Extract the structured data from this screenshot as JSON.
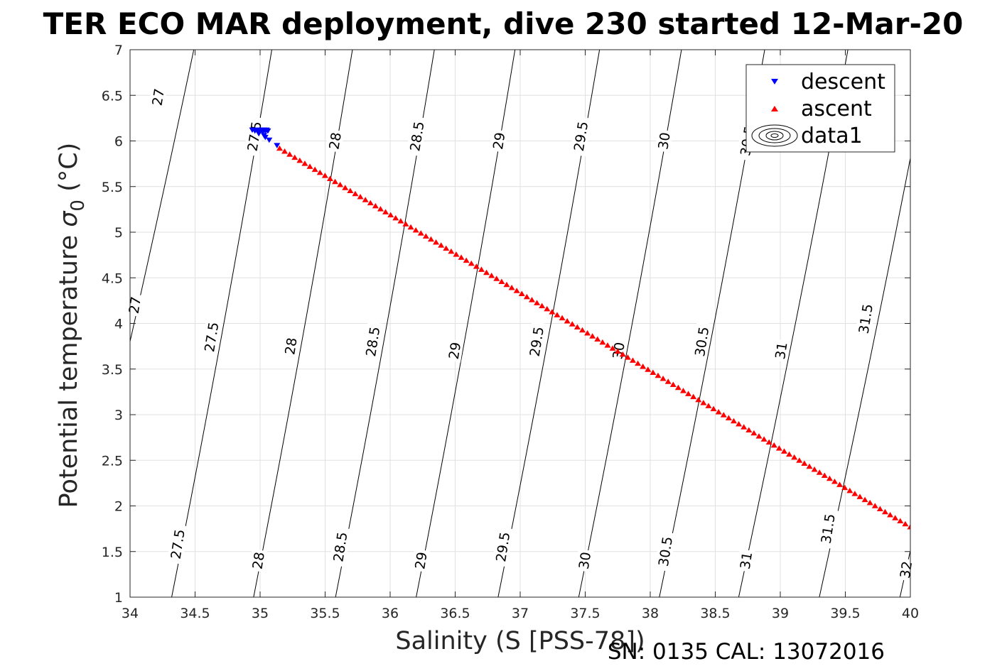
{
  "figure": {
    "title": "TER ECO MAR deployment, dive 230 started 12-Mar-20",
    "footer": "SN: 0135  CAL: 13072016"
  },
  "chart_data": {
    "type": "scatter",
    "title": "TER ECO MAR deployment, dive 230 started 12-Mar-20",
    "xlabel": "Salinity (S [PSS-78])",
    "ylabel_prefix": "Potential temperature ",
    "ylabel_sigma": "σ",
    "ylabel_sub": "0",
    "ylabel_suffix": " (°C)",
    "xlim": [
      34,
      40
    ],
    "ylim": [
      1,
      7
    ],
    "xticks": [
      34,
      34.5,
      35,
      35.5,
      36,
      36.5,
      37,
      37.5,
      38,
      38.5,
      39,
      39.5,
      40
    ],
    "xtick_labels": [
      "34",
      "34.5",
      "35",
      "35.5",
      "36",
      "36.5",
      "37",
      "37.5",
      "38",
      "38.5",
      "39",
      "39.5",
      "40"
    ],
    "yticks": [
      1,
      1.5,
      2,
      2.5,
      3,
      3.5,
      4,
      4.5,
      5,
      5.5,
      6,
      6.5,
      7
    ],
    "ytick_labels": [
      "1",
      "1.5",
      "2",
      "2.5",
      "3",
      "3.5",
      "4",
      "4.5",
      "5",
      "5.5",
      "6",
      "6.5",
      "7"
    ],
    "grid": true,
    "legend_position": "top-right",
    "series": [
      {
        "name": "descent",
        "marker": "triangle-down",
        "color": "#0000ff",
        "x": [
          34.94,
          34.96,
          34.98,
          35.0,
          35.01,
          35.02,
          35.03,
          35.04,
          35.05,
          35.06,
          34.99,
          35.03,
          35.04,
          35.07,
          35.13
        ],
        "y": [
          6.12,
          6.11,
          6.12,
          6.11,
          6.12,
          6.1,
          6.12,
          6.11,
          6.12,
          6.11,
          6.08,
          6.06,
          6.04,
          6.01,
          5.95
        ]
      },
      {
        "name": "ascent",
        "marker": "triangle-up",
        "color": "#ff0000",
        "x_start": 35.15,
        "x_end": 40.0,
        "y_start": 5.92,
        "y_end": 1.77,
        "count": 126
      }
    ],
    "contours": {
      "name": "data1",
      "line_color": "#000000",
      "levels": [
        27,
        27.5,
        28,
        28.5,
        29,
        29.5,
        30,
        30.5,
        31,
        31.5,
        32
      ],
      "lines": [
        {
          "level": 27,
          "label": "27",
          "x_at_y1": 33.54,
          "x_at_y7": 34.49
        },
        {
          "level": 27.5,
          "label": "27.5",
          "x_at_y1": 34.32,
          "x_at_y7": 35.09
        },
        {
          "level": 28,
          "label": "28",
          "x_at_y1": 34.95,
          "x_at_y7": 35.71
        },
        {
          "level": 28.5,
          "label": "28.5",
          "x_at_y1": 35.58,
          "x_at_y7": 36.34
        },
        {
          "level": 29,
          "label": "29",
          "x_at_y1": 36.2,
          "x_at_y7": 36.96
        },
        {
          "level": 29.5,
          "label": "29.5",
          "x_at_y1": 36.83,
          "x_at_y7": 37.61
        },
        {
          "level": 30,
          "label": "30",
          "x_at_y1": 37.45,
          "x_at_y7": 38.24
        },
        {
          "level": 30.5,
          "label": "30.5",
          "x_at_y1": 38.07,
          "x_at_y7": 38.88
        },
        {
          "level": 31,
          "label": "31",
          "x_at_y1": 38.68,
          "x_at_y7": 39.52
        },
        {
          "level": 31.5,
          "label": "31.5",
          "x_at_y1": 39.3,
          "x_at_y7": 40.16
        },
        {
          "level": 32,
          "label": "32",
          "x_at_y1": 39.92,
          "x_at_y7": 40.8
        }
      ],
      "labels": [
        {
          "text": "27",
          "x": 34.22,
          "y": 6.48
        },
        {
          "text": "27",
          "x": 34.04,
          "y": 4.2
        },
        {
          "text": "27.5",
          "x": 34.96,
          "y": 6.05
        },
        {
          "text": "27.5",
          "x": 34.63,
          "y": 3.85
        },
        {
          "text": "27.5",
          "x": 34.37,
          "y": 1.58
        },
        {
          "text": "28",
          "x": 35.58,
          "y": 6.0
        },
        {
          "text": "28",
          "x": 35.24,
          "y": 3.75
        },
        {
          "text": "28",
          "x": 34.99,
          "y": 1.4
        },
        {
          "text": "28.5",
          "x": 36.21,
          "y": 6.05
        },
        {
          "text": "28.5",
          "x": 35.87,
          "y": 3.8
        },
        {
          "text": "28.5",
          "x": 35.62,
          "y": 1.55
        },
        {
          "text": "29",
          "x": 36.84,
          "y": 6.0
        },
        {
          "text": "29",
          "x": 36.5,
          "y": 3.7
        },
        {
          "text": "29",
          "x": 36.24,
          "y": 1.4
        },
        {
          "text": "29.5",
          "x": 37.47,
          "y": 6.05
        },
        {
          "text": "29.5",
          "x": 37.13,
          "y": 3.8
        },
        {
          "text": "29.5",
          "x": 36.87,
          "y": 1.55
        },
        {
          "text": "30",
          "x": 38.11,
          "y": 6.0
        },
        {
          "text": "30",
          "x": 37.76,
          "y": 3.7
        },
        {
          "text": "30",
          "x": 37.5,
          "y": 1.4
        },
        {
          "text": "30.5",
          "x": 38.75,
          "y": 6.0
        },
        {
          "text": "30.5",
          "x": 38.4,
          "y": 3.8
        },
        {
          "text": "30.5",
          "x": 38.12,
          "y": 1.5
        },
        {
          "text": "31",
          "x": 39.01,
          "y": 3.7
        },
        {
          "text": "31",
          "x": 38.74,
          "y": 1.4
        },
        {
          "text": "31.5",
          "x": 39.66,
          "y": 4.05
        },
        {
          "text": "31.5",
          "x": 39.37,
          "y": 1.75
        },
        {
          "text": "32",
          "x": 39.97,
          "y": 1.3
        }
      ]
    },
    "legend": [
      "descent",
      "ascent",
      "data1"
    ]
  }
}
